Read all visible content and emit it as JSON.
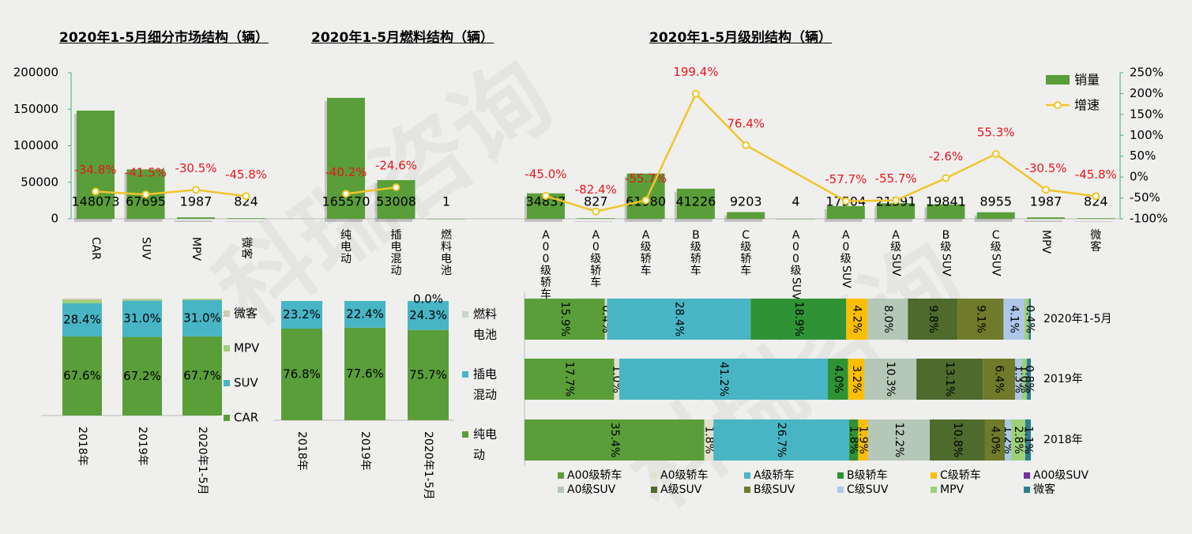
{
  "watermark": "科瑞咨询",
  "titles": {
    "segment": "2020年1-5月细分市场结构（辆）",
    "fuel": "2020年1-5月燃料结构（辆）",
    "grade": "2020年1-5月级别结构（辆）"
  },
  "legend_top": {
    "sales": "销量",
    "growth": "增速"
  },
  "colors": {
    "bar": "#5a9e3a",
    "line": "#f0c52b",
    "growth_label": "#e8141c",
    "A00级轿车": "#5a9e3a",
    "A0级轿车": "#e4e1cb",
    "A级轿车": "#48b5c5",
    "B级轿车": "#2f9336",
    "C级轿车": "#fbbf00",
    "A00级SUV": "#7030a0",
    "A0级SUV": "#b5c7b7",
    "A级SUV": "#4e6a2c",
    "B级SUV": "#6f7a2a",
    "C级SUV": "#aec7e8",
    "MPV": "#9ed07a",
    "微客": "#2e7f8e",
    "CAR": "#5a9e3a",
    "SUV": "#48b5c5",
    "纯电动": "#5a9e3a",
    "插电混动": "#48b5c5",
    "燃料电池": "#c9d4c8"
  },
  "chart_data": [
    {
      "id": "segment",
      "type": "bar",
      "title": "2020年1-5月细分市场结构（辆）",
      "categories": [
        "CAR",
        "SUV",
        "MPV",
        "微客"
      ],
      "series": [
        {
          "name": "销量",
          "values": [
            148073,
            67695,
            1987,
            824
          ]
        },
        {
          "name": "增速",
          "values": [
            -34.8,
            -41.5,
            -30.5,
            -45.8
          ]
        }
      ],
      "value_labels": [
        "148073",
        "67695",
        "1987",
        "824"
      ],
      "growth_labels": [
        "-34.8%",
        "-41.5%",
        "-30.5%",
        "-45.8%"
      ],
      "y_ticks": [
        "200000",
        "150000",
        "100000",
        "50000",
        "0"
      ],
      "ylim": [
        0,
        200000
      ]
    },
    {
      "id": "fuel",
      "type": "bar",
      "title": "2020年1-5月燃料结构（辆）",
      "categories": [
        "纯电动",
        "插电混动",
        "燃料电池"
      ],
      "series": [
        {
          "name": "销量",
          "values": [
            165570,
            53008,
            1
          ]
        },
        {
          "name": "增速",
          "values": [
            -40.2,
            -24.6,
            null
          ]
        }
      ],
      "value_labels": [
        "165570",
        "53008",
        "1"
      ],
      "growth_labels": [
        "-40.2%",
        "-24.6%",
        ""
      ],
      "ylim": [
        0,
        200000
      ]
    },
    {
      "id": "grade",
      "type": "bar",
      "title": "2020年1-5月级别结构（辆）",
      "categories": [
        "A00级轿车",
        "A0级轿车",
        "A级轿车",
        "B级轿车",
        "C级轿车",
        "A00级SUV",
        "A0级SUV",
        "A级SUV",
        "B级SUV",
        "C级SUV",
        "MPV",
        "微客"
      ],
      "series": [
        {
          "name": "销量",
          "values": [
            34837,
            827,
            61980,
            41226,
            9203,
            4,
            17504,
            21391,
            19841,
            8955,
            1987,
            824
          ]
        },
        {
          "name": "增速",
          "values": [
            -45.0,
            -82.4,
            -55.7,
            199.4,
            76.4,
            null,
            -57.7,
            -55.7,
            -2.6,
            55.3,
            -30.5,
            -45.8
          ]
        }
      ],
      "value_labels": [
        "34837",
        "827",
        "61980",
        "41226",
        "9203",
        "4",
        "17504",
        "21391",
        "19841",
        "8955",
        "1987",
        "824"
      ],
      "growth_labels": [
        "-45.0%",
        "-82.4%",
        "-55.7%",
        "199.4%",
        "76.4%",
        "",
        "-57.7%",
        "-55.7%",
        "-2.6%",
        "55.3%",
        "-30.5%",
        "-45.8%"
      ],
      "y2_ticks": [
        "250%",
        "200%",
        "150%",
        "100%",
        "50%",
        "0%",
        "-50%",
        "-100%"
      ],
      "ylim": [
        0,
        200000
      ],
      "y2lim": [
        -100,
        250
      ],
      "legend": [
        "销量",
        "增速"
      ]
    },
    {
      "id": "segment_structure",
      "type": "bar",
      "stacked": true,
      "categories": [
        "2018年",
        "2019年",
        "2020年1-5月"
      ],
      "series": [
        {
          "name": "CAR",
          "values": [
            67.6,
            67.2,
            67.7
          ]
        },
        {
          "name": "SUV",
          "values": [
            28.4,
            31.0,
            31.0
          ]
        },
        {
          "name": "MPV",
          "values": [
            2.9,
            1.0,
            0.9
          ]
        },
        {
          "name": "微客",
          "values": [
            1.1,
            0.8,
            0.4
          ]
        }
      ],
      "labels": {
        "CAR": [
          "67.6%",
          "67.2%",
          "67.7%"
        ],
        "SUV": [
          "28.4%",
          "31.0%",
          "31.0%"
        ]
      },
      "legend": [
        "微客",
        "MPV",
        "SUV",
        "CAR"
      ]
    },
    {
      "id": "fuel_structure",
      "type": "bar",
      "stacked": true,
      "categories": [
        "2018年",
        "2019年",
        "2020年1-5月"
      ],
      "series": [
        {
          "name": "纯电动",
          "values": [
            76.8,
            77.6,
            75.7
          ]
        },
        {
          "name": "插电混动",
          "values": [
            23.2,
            22.4,
            24.3
          ]
        },
        {
          "name": "燃料电池",
          "values": [
            0.0,
            0.0,
            0.0
          ]
        }
      ],
      "labels": {
        "纯电动": [
          "76.8%",
          "77.6%",
          "75.7%"
        ],
        "插电混动": [
          "23.2%",
          "22.4%",
          "24.3%"
        ],
        "燃料电池": [
          "",
          "",
          "0.0%"
        ]
      },
      "legend": [
        "燃料电池",
        "插电混动",
        "纯电动"
      ]
    },
    {
      "id": "grade_structure",
      "type": "bar",
      "stacked": true,
      "orientation": "horizontal",
      "categories": [
        "2020年1-5月",
        "2019年",
        "2018年"
      ],
      "segments": [
        "A00级轿车",
        "A0级轿车",
        "A级轿车",
        "B级轿车",
        "C级轿车",
        "A00级SUV",
        "A0级SUV",
        "A级SUV",
        "B级SUV",
        "C级SUV",
        "MPV",
        "微客"
      ],
      "rows": [
        {
          "values": [
            15.9,
            0.4,
            28.4,
            18.9,
            4.2,
            0.0,
            8.0,
            9.8,
            9.1,
            4.1,
            0.9,
            0.4
          ],
          "labels": [
            "15.9%",
            "0.4%",
            "28.4%",
            "18.9%",
            "4.2%",
            "",
            "8.0%",
            "9.8%",
            "9.1%",
            "4.1%",
            "",
            "0.4%"
          ]
        },
        {
          "values": [
            17.7,
            1.0,
            41.2,
            4.0,
            3.2,
            0.0,
            10.3,
            13.1,
            6.4,
            1.3,
            1.0,
            0.8
          ],
          "labels": [
            "17.7%",
            "1.0%",
            "41.2%",
            "4.0%",
            "3.2%",
            "",
            "10.3%",
            "13.1%",
            "6.4%",
            "1.3%",
            "1.0%",
            "0.8%"
          ]
        },
        {
          "values": [
            35.4,
            1.8,
            26.7,
            1.8,
            1.9,
            0.0,
            12.2,
            10.8,
            4.0,
            1.2,
            2.8,
            1.1
          ],
          "labels": [
            "35.4%",
            "1.8%",
            "26.7%",
            "1.8%",
            "1.9%",
            "",
            "12.2%",
            "10.8%",
            "4.0%",
            "1.2%",
            "2.8%",
            "1.1%"
          ]
        }
      ]
    }
  ]
}
